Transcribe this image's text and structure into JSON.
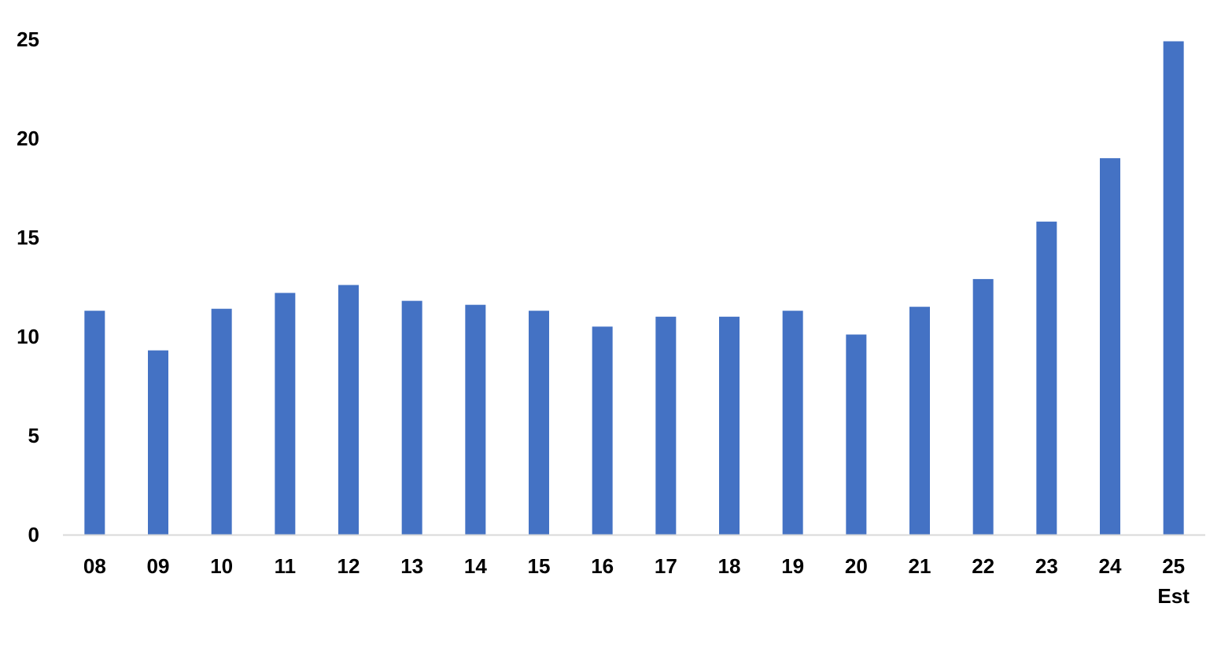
{
  "chart_data": {
    "type": "bar",
    "title": "",
    "xlabel": "",
    "ylabel": "",
    "categories": [
      "08",
      "09",
      "10",
      "11",
      "12",
      "13",
      "14",
      "15",
      "16",
      "17",
      "18",
      "19",
      "20",
      "21",
      "22",
      "23",
      "24",
      "25\nEst"
    ],
    "values": [
      11.3,
      9.3,
      11.4,
      12.2,
      12.6,
      11.8,
      11.6,
      11.3,
      10.5,
      11.0,
      11.0,
      11.3,
      10.1,
      11.5,
      12.9,
      15.8,
      19.0,
      24.9
    ],
    "ylim": [
      0,
      25
    ],
    "yticks": [
      0,
      5,
      10,
      15,
      20,
      25
    ],
    "grid": false,
    "legend": "none",
    "bar_color": "#4472C4",
    "axis_color": "#D9D9D9"
  }
}
